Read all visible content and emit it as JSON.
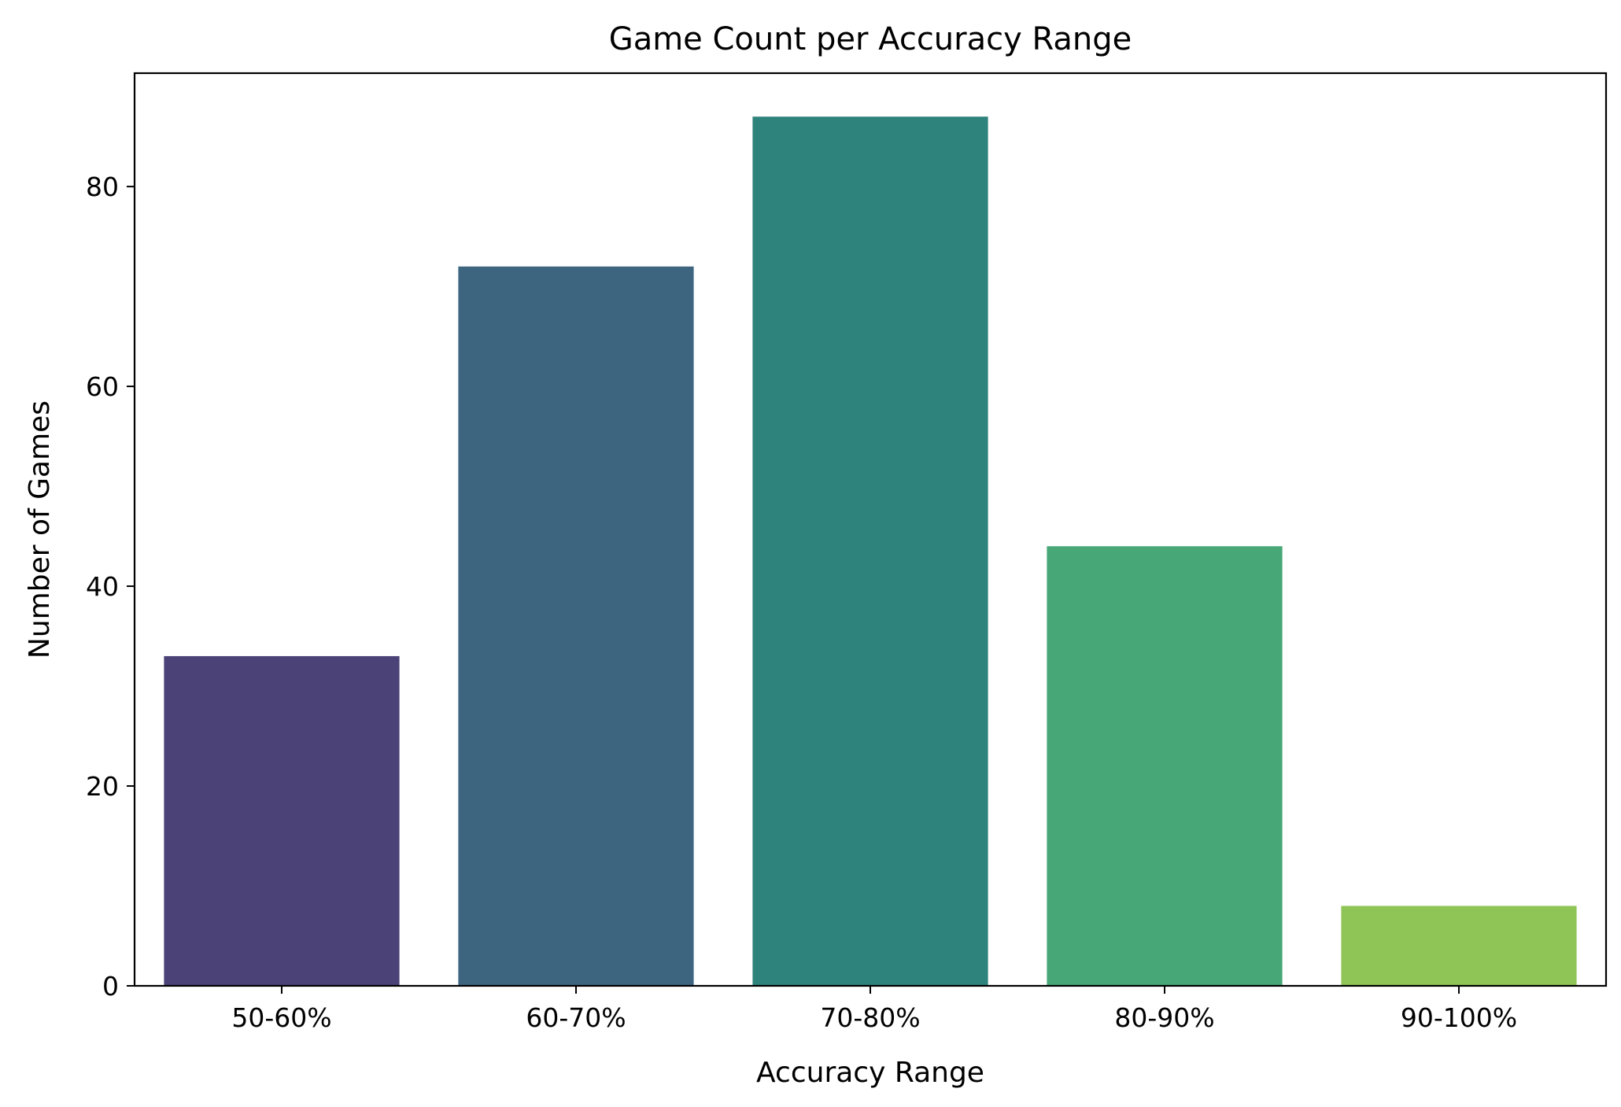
{
  "chart_data": {
    "type": "bar",
    "title": "Game Count per Accuracy Range",
    "xlabel": "Accuracy Range",
    "ylabel": "Number of Games",
    "categories": [
      "50-60%",
      "60-70%",
      "70-80%",
      "80-90%",
      "90-100%"
    ],
    "values": [
      33,
      72,
      87,
      44,
      8
    ],
    "colors": [
      "#4b4277",
      "#3e6580",
      "#2e837c",
      "#47a777",
      "#8fc556"
    ],
    "ylim": [
      0,
      91.35
    ],
    "yticks": [
      0,
      20,
      40,
      60,
      80
    ],
    "ytick_labels": [
      "0",
      "20",
      "40",
      "60",
      "80"
    ],
    "grid": false,
    "legend": false
  }
}
